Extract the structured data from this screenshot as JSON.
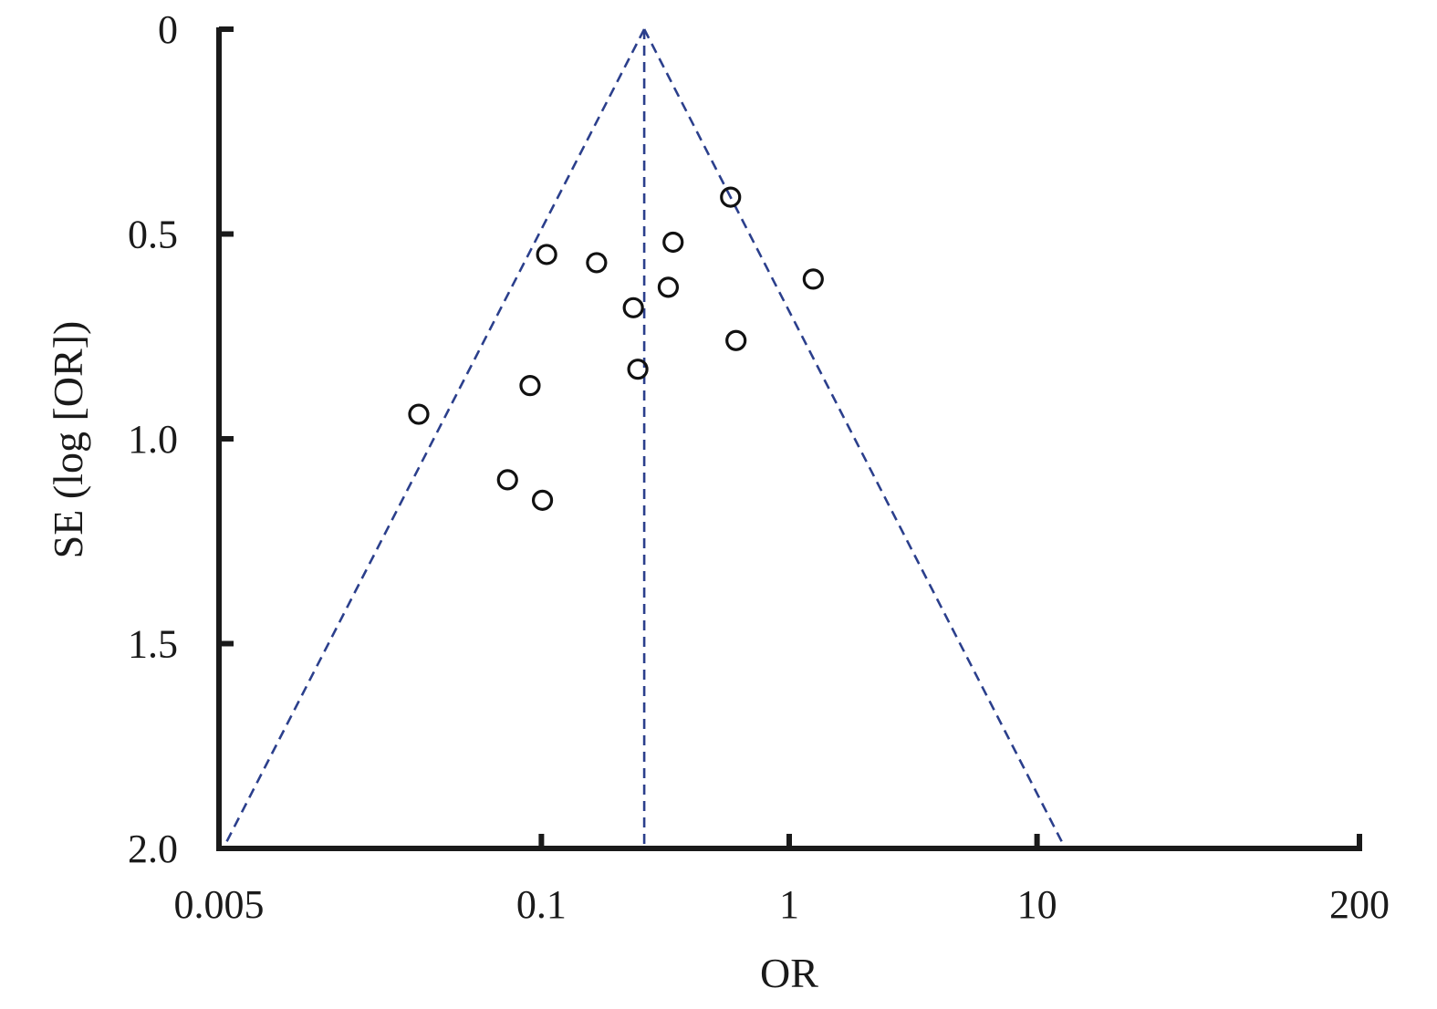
{
  "chart_data": {
    "type": "scatter",
    "title": "",
    "xlabel": "OR",
    "ylabel": "SE (log [OR])",
    "x_scale": "log",
    "y_inverted": true,
    "xlim": [
      0.005,
      200
    ],
    "ylim": [
      0,
      2.0
    ],
    "x_ticks": [
      {
        "value": 0.005,
        "label": "0.005"
      },
      {
        "value": 0.1,
        "label": "0.1"
      },
      {
        "value": 1,
        "label": "1"
      },
      {
        "value": 10,
        "label": "10"
      },
      {
        "value": 200,
        "label": "200"
      }
    ],
    "y_ticks": [
      {
        "value": 0,
        "label": "0"
      },
      {
        "value": 0.5,
        "label": "0.5"
      },
      {
        "value": 1.0,
        "label": "1.0"
      },
      {
        "value": 1.5,
        "label": "1.5"
      },
      {
        "value": 2.0,
        "label": "2.0"
      }
    ],
    "pooled_or": 0.26,
    "funnel_limits_at_se_2": [
      0.0052,
      13.0
    ],
    "grid": false,
    "colors": {
      "funnel": "#2b3f8c",
      "points": "#111111",
      "axes": "#1a1a1a"
    },
    "points": [
      {
        "or": 0.58,
        "se": 0.41
      },
      {
        "or": 0.34,
        "se": 0.52
      },
      {
        "or": 0.105,
        "se": 0.55
      },
      {
        "or": 0.167,
        "se": 0.57
      },
      {
        "or": 1.25,
        "se": 0.61
      },
      {
        "or": 0.325,
        "se": 0.63
      },
      {
        "or": 0.235,
        "se": 0.68
      },
      {
        "or": 0.61,
        "se": 0.76
      },
      {
        "or": 0.245,
        "se": 0.83
      },
      {
        "or": 0.09,
        "se": 0.87
      },
      {
        "or": 0.032,
        "se": 0.94
      },
      {
        "or": 0.073,
        "se": 1.1
      },
      {
        "or": 0.101,
        "se": 1.15
      }
    ]
  }
}
